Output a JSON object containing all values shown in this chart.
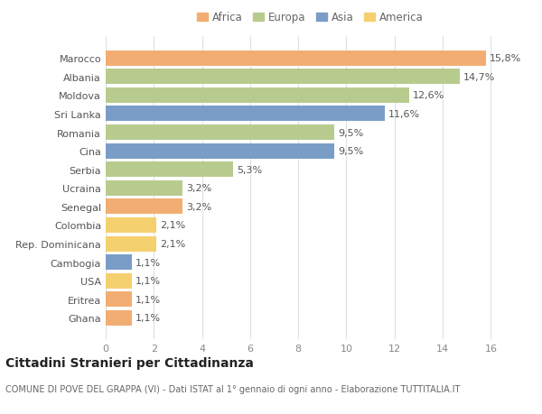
{
  "countries": [
    "Ghana",
    "Eritrea",
    "USA",
    "Cambogia",
    "Rep. Dominicana",
    "Colombia",
    "Senegal",
    "Ucraina",
    "Serbia",
    "Cina",
    "Romania",
    "Sri Lanka",
    "Moldova",
    "Albania",
    "Marocco"
  ],
  "values": [
    1.1,
    1.1,
    1.1,
    1.1,
    2.1,
    2.1,
    3.2,
    3.2,
    5.3,
    9.5,
    9.5,
    11.6,
    12.6,
    14.7,
    15.8
  ],
  "continents": [
    "Africa",
    "Africa",
    "America",
    "Asia",
    "America",
    "America",
    "Africa",
    "Europa",
    "Europa",
    "Asia",
    "Europa",
    "Asia",
    "Europa",
    "Europa",
    "Africa"
  ],
  "colors": {
    "Africa": "#F2AE72",
    "Europa": "#B8CB8E",
    "Asia": "#7A9DC8",
    "America": "#F5D06E"
  },
  "legend_order": [
    "Africa",
    "Europa",
    "Asia",
    "America"
  ],
  "xlim": [
    0,
    17
  ],
  "xticks": [
    0,
    2,
    4,
    6,
    8,
    10,
    12,
    14,
    16
  ],
  "title": "Cittadini Stranieri per Cittadinanza",
  "subtitle": "COMUNE DI POVE DEL GRAPPA (VI) - Dati ISTAT al 1° gennaio di ogni anno - Elaborazione TUTTITALIA.IT",
  "bg_color": "#ffffff",
  "grid_color": "#e0e0e0",
  "bar_height": 0.82,
  "label_fontsize": 8,
  "tick_fontsize": 8,
  "title_fontsize": 10,
  "subtitle_fontsize": 7
}
